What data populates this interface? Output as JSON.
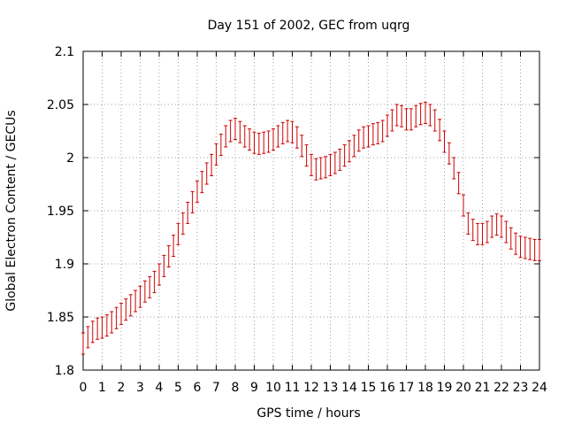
{
  "chart_data": {
    "type": "line",
    "title": "Day 151 of 2002, GEC from uqrg",
    "xlabel": "GPS time / hours",
    "ylabel": "Global Electron Content / GECUs",
    "xlim": [
      0,
      24
    ],
    "ylim": [
      1.8,
      2.1
    ],
    "xticks": [
      "0",
      "1",
      "2",
      "3",
      "4",
      "5",
      "6",
      "7",
      "8",
      "9",
      "10",
      "11",
      "12",
      "13",
      "14",
      "15",
      "16",
      "17",
      "18",
      "19",
      "20",
      "21",
      "22",
      "23",
      "24"
    ],
    "yticks": [
      "1.8",
      "1.85",
      "1.9",
      "1.95",
      "2",
      "2.05",
      "2.1"
    ],
    "grid": true,
    "error_bars": true,
    "line_color": "#cc0000",
    "series": [
      {
        "x": [
          0,
          0.25,
          0.5,
          0.75,
          1,
          1.25,
          1.5,
          1.75,
          2,
          2.25,
          2.5,
          2.75,
          3,
          3.25,
          3.5,
          3.75,
          4,
          4.25,
          4.5,
          4.75,
          5,
          5.25,
          5.5,
          5.75,
          6,
          6.25,
          6.5,
          6.75,
          7,
          7.25,
          7.5,
          7.75,
          8,
          8.25,
          8.5,
          8.75,
          9,
          9.25,
          9.5,
          9.75,
          10,
          10.25,
          10.5,
          10.75,
          11,
          11.25,
          11.5,
          11.75,
          12,
          12.25,
          12.5,
          12.75,
          13,
          13.25,
          13.5,
          13.75,
          14,
          14.25,
          14.5,
          14.75,
          15,
          15.25,
          15.5,
          15.75,
          16,
          16.25,
          16.5,
          16.75,
          17,
          17.25,
          17.5,
          17.75,
          18,
          18.25,
          18.5,
          18.75,
          19,
          19.25,
          19.5,
          19.75,
          20,
          20.25,
          20.5,
          20.75,
          21,
          21.25,
          21.5,
          21.75,
          22,
          22.25,
          22.5,
          22.75,
          23,
          23.25,
          23.5,
          23.75,
          24
        ],
        "y": [
          1.825,
          1.831,
          1.836,
          1.839,
          1.84,
          1.842,
          1.845,
          1.849,
          1.853,
          1.857,
          1.861,
          1.865,
          1.869,
          1.874,
          1.878,
          1.883,
          1.89,
          1.898,
          1.907,
          1.917,
          1.928,
          1.938,
          1.948,
          1.958,
          1.968,
          1.977,
          1.985,
          1.993,
          2.003,
          2.012,
          2.02,
          2.025,
          2.027,
          2.024,
          2.02,
          2.017,
          2.014,
          2.013,
          2.014,
          2.015,
          2.017,
          2.02,
          2.023,
          2.025,
          2.024,
          2.019,
          2.011,
          2.002,
          1.993,
          1.989,
          1.99,
          1.991,
          1.993,
          1.995,
          1.998,
          2.002,
          2.006,
          2.011,
          2.016,
          2.019,
          2.02,
          2.022,
          2.023,
          2.025,
          2.03,
          2.035,
          2.04,
          2.039,
          2.036,
          2.036,
          2.039,
          2.041,
          2.042,
          2.04,
          2.035,
          2.026,
          2.015,
          2.004,
          1.99,
          1.976,
          1.955,
          1.938,
          1.932,
          1.928,
          1.928,
          1.93,
          1.935,
          1.937,
          1.935,
          1.93,
          1.924,
          1.919,
          1.916,
          1.915,
          1.914,
          1.913,
          1.913
        ],
        "error": 0.01
      }
    ]
  }
}
